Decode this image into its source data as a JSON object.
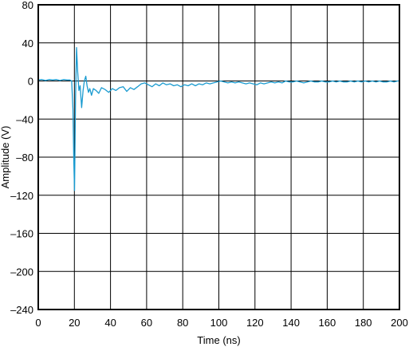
{
  "chart_data": {
    "type": "line",
    "xlabel": "Time (ns)",
    "ylabel": "Amplitude (V)",
    "xlim": [
      0,
      200
    ],
    "ylim": [
      -240,
      80
    ],
    "x_ticks": [
      0,
      20,
      40,
      60,
      80,
      100,
      120,
      140,
      160,
      180,
      200
    ],
    "y_ticks": [
      80,
      40,
      0,
      -40,
      -80,
      -120,
      -160,
      -200,
      -240
    ],
    "x_tick_labels": [
      "0",
      "20",
      "40",
      "60",
      "80",
      "100",
      "120",
      "140",
      "160",
      "180",
      "200"
    ],
    "y_tick_labels": [
      "80",
      "40",
      "0",
      "–40",
      "–80",
      "–120",
      "–160",
      "–200",
      "–240"
    ],
    "grid": true,
    "series": [
      {
        "color": "#1a9bd0",
        "points": [
          [
            0,
            1
          ],
          [
            2,
            1.5
          ],
          [
            4,
            0.5
          ],
          [
            6,
            1.5
          ],
          [
            8,
            1
          ],
          [
            10,
            1.5
          ],
          [
            12,
            0.5
          ],
          [
            14,
            1.5
          ],
          [
            16,
            1
          ],
          [
            17.5,
            1
          ],
          [
            18.5,
            0
          ],
          [
            19.2,
            -30
          ],
          [
            19.7,
            -85
          ],
          [
            20.1,
            -115
          ],
          [
            20.6,
            -20
          ],
          [
            21.2,
            35
          ],
          [
            21.8,
            10
          ],
          [
            22.5,
            -10
          ],
          [
            23.2,
            -5
          ],
          [
            24,
            -28
          ],
          [
            24.8,
            -10
          ],
          [
            25.5,
            0
          ],
          [
            26.3,
            5
          ],
          [
            27,
            -5
          ],
          [
            27.8,
            -12
          ],
          [
            28.5,
            -8
          ],
          [
            29.5,
            -15
          ],
          [
            30.5,
            -8
          ],
          [
            32,
            -10
          ],
          [
            33.5,
            -13
          ],
          [
            35,
            -7
          ],
          [
            37,
            -9
          ],
          [
            39,
            -12
          ],
          [
            41,
            -8
          ],
          [
            43,
            -10
          ],
          [
            45,
            -7
          ],
          [
            47,
            -6
          ],
          [
            49,
            -11
          ],
          [
            51,
            -7
          ],
          [
            53,
            -9
          ],
          [
            55,
            -6
          ],
          [
            57,
            -3
          ],
          [
            59,
            -2
          ],
          [
            61,
            -4
          ],
          [
            63,
            -6
          ],
          [
            65,
            -3
          ],
          [
            67,
            -5
          ],
          [
            69,
            -2
          ],
          [
            71,
            -4
          ],
          [
            73,
            -3
          ],
          [
            75,
            -5
          ],
          [
            77,
            -4
          ],
          [
            79,
            -6
          ],
          [
            81,
            -4
          ],
          [
            83,
            -5
          ],
          [
            85,
            -3
          ],
          [
            87,
            -5
          ],
          [
            89,
            -3
          ],
          [
            91,
            -4
          ],
          [
            93,
            -2
          ],
          [
            95,
            -3
          ],
          [
            97,
            -2
          ],
          [
            99,
            -1
          ],
          [
            101,
            0
          ],
          [
            103,
            -1
          ],
          [
            105,
            -2
          ],
          [
            107,
            -1
          ],
          [
            109,
            -2
          ],
          [
            111,
            -1
          ],
          [
            113,
            -2
          ],
          [
            115,
            -3
          ],
          [
            117,
            -2
          ],
          [
            119,
            -3
          ],
          [
            121,
            -4
          ],
          [
            123,
            -2
          ],
          [
            125,
            -3
          ],
          [
            127,
            -2
          ],
          [
            129,
            -1
          ],
          [
            131,
            -2
          ],
          [
            133,
            -1
          ],
          [
            135,
            -2
          ],
          [
            137,
            0
          ],
          [
            139,
            -1
          ],
          [
            141,
            -1
          ],
          [
            143,
            0
          ],
          [
            145,
            -1
          ],
          [
            147,
            -2
          ],
          [
            149,
            -1
          ],
          [
            151,
            0
          ],
          [
            153,
            -1
          ],
          [
            155,
            -1
          ],
          [
            157,
            0
          ],
          [
            159,
            -1
          ],
          [
            161,
            -1
          ],
          [
            163,
            0
          ],
          [
            165,
            -1
          ],
          [
            167,
            0
          ],
          [
            169,
            -1
          ],
          [
            171,
            -1
          ],
          [
            173,
            0
          ],
          [
            175,
            -1
          ],
          [
            177,
            0
          ],
          [
            179,
            -1
          ],
          [
            181,
            0
          ],
          [
            183,
            -1
          ],
          [
            185,
            0
          ],
          [
            187,
            -1
          ],
          [
            189,
            0
          ],
          [
            191,
            -1
          ],
          [
            193,
            -1
          ],
          [
            195,
            0
          ],
          [
            197,
            -1
          ],
          [
            199,
            0
          ],
          [
            200,
            0
          ]
        ]
      }
    ]
  }
}
